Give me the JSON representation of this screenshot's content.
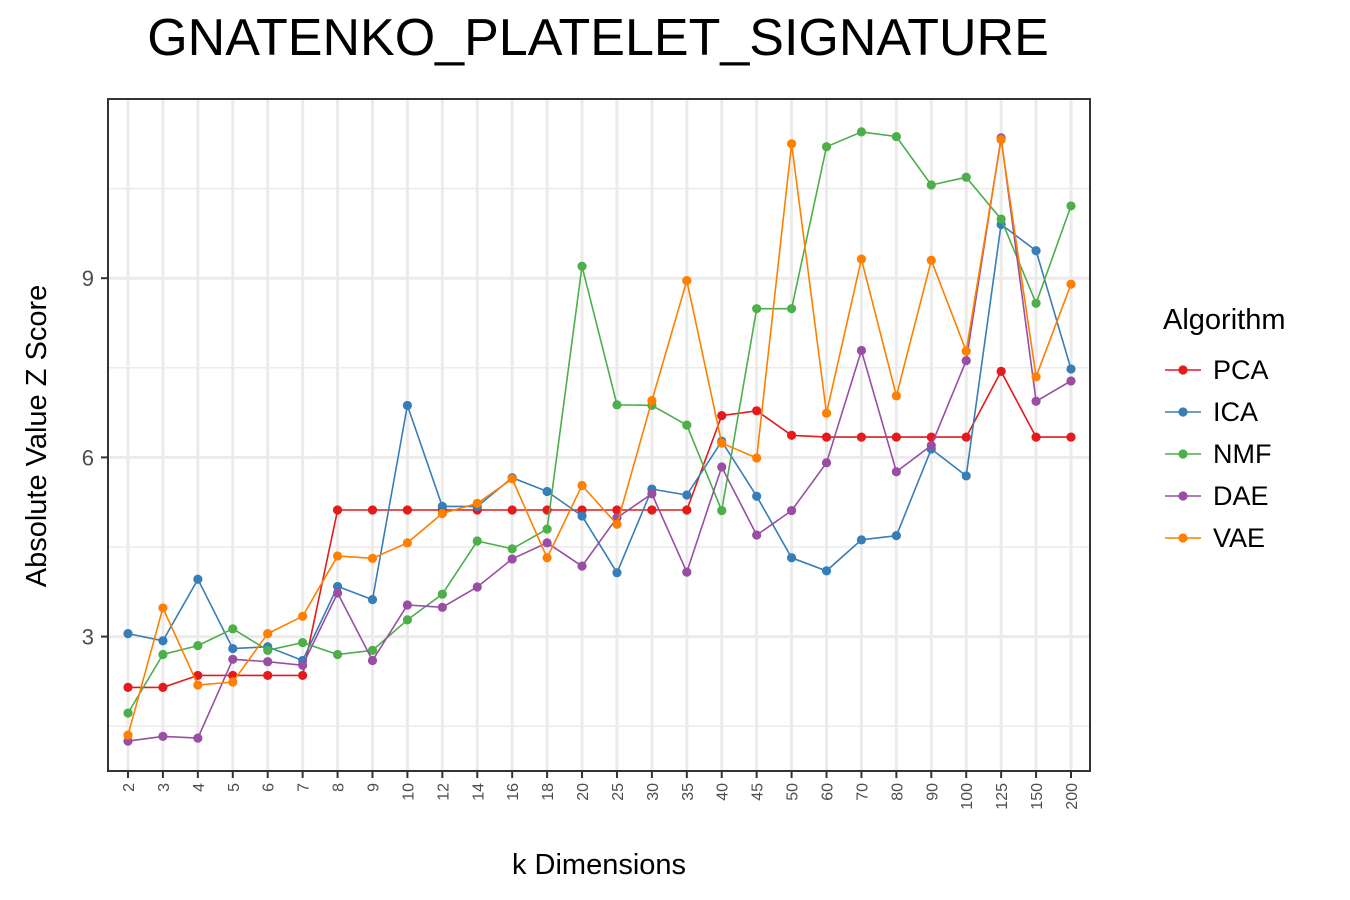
{
  "chart_data": {
    "type": "line",
    "title": "GNATENKO_PLATELET_SIGNATURE",
    "xlabel": "k Dimensions",
    "ylabel": "Absolute Value Z Score",
    "categories": [
      "2",
      "3",
      "4",
      "5",
      "6",
      "7",
      "8",
      "9",
      "10",
      "12",
      "14",
      "16",
      "18",
      "20",
      "25",
      "30",
      "35",
      "40",
      "45",
      "50",
      "60",
      "70",
      "80",
      "90",
      "100",
      "125",
      "150",
      "200"
    ],
    "yticks": [
      3,
      6,
      9
    ],
    "ylim": [
      0.75,
      12.0
    ],
    "grid": true,
    "legend_title": "Algorithm",
    "legend_position": "right",
    "series": [
      {
        "name": "PCA",
        "color": "#E41A1C",
        "values": [
          2.15,
          2.15,
          2.35,
          2.35,
          2.35,
          2.35,
          5.12,
          5.12,
          5.12,
          5.12,
          5.12,
          5.12,
          5.12,
          5.12,
          5.12,
          5.12,
          5.12,
          6.7,
          6.78,
          6.37,
          6.34,
          6.34,
          6.34,
          6.34,
          6.34,
          7.44,
          6.34,
          6.34
        ]
      },
      {
        "name": "ICA",
        "color": "#377EB8",
        "values": [
          3.05,
          2.93,
          3.96,
          2.8,
          2.83,
          2.6,
          3.84,
          3.62,
          6.87,
          5.18,
          5.18,
          5.66,
          5.43,
          5.02,
          4.07,
          5.47,
          5.37,
          6.27,
          5.35,
          4.32,
          4.1,
          4.62,
          4.69,
          6.14,
          5.69,
          9.9,
          9.46,
          7.48
        ]
      },
      {
        "name": "NMF",
        "color": "#4DAF4A",
        "values": [
          1.72,
          2.7,
          2.85,
          3.13,
          2.77,
          2.9,
          2.7,
          2.77,
          3.28,
          3.71,
          4.6,
          4.47,
          4.8,
          9.2,
          6.88,
          6.87,
          6.54,
          5.11,
          8.49,
          8.49,
          11.2,
          11.45,
          11.37,
          10.56,
          10.69,
          9.99,
          8.58,
          10.21
        ]
      },
      {
        "name": "DAE",
        "color": "#984EA3",
        "values": [
          1.25,
          1.33,
          1.3,
          2.62,
          2.58,
          2.52,
          3.73,
          2.6,
          3.53,
          3.49,
          3.83,
          4.3,
          4.57,
          4.18,
          4.99,
          5.39,
          4.08,
          5.84,
          4.7,
          5.11,
          5.91,
          7.79,
          5.76,
          6.2,
          7.62,
          11.35,
          6.94,
          7.28
        ]
      },
      {
        "name": "VAE",
        "color": "#FF7F00",
        "values": [
          1.35,
          3.48,
          2.19,
          2.24,
          3.05,
          3.34,
          4.35,
          4.31,
          4.57,
          5.06,
          5.23,
          5.64,
          4.32,
          5.53,
          4.88,
          6.95,
          8.96,
          6.24,
          5.99,
          11.25,
          6.74,
          9.32,
          7.03,
          9.3,
          7.78,
          11.32,
          7.35,
          8.9
        ]
      }
    ]
  }
}
